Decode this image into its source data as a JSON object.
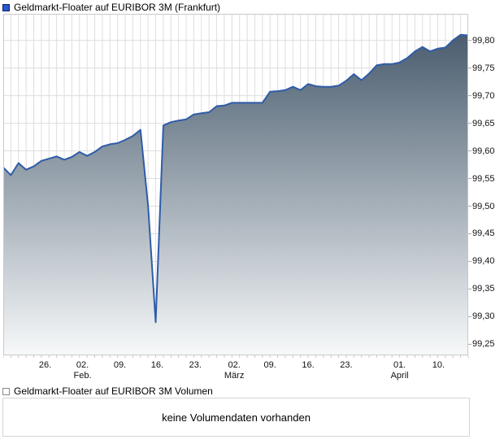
{
  "header": {
    "title": "Geldmarkt-Floater auf EURIBOR 3M (Frankfurt)",
    "legend_color": "#2957d0"
  },
  "volume": {
    "title": "Geldmarkt-Floater auf EURIBOR 3M Volumen",
    "message": "keine Volumendaten vorhanden"
  },
  "chart_data": {
    "type": "area",
    "title": "Geldmarkt-Floater auf EURIBOR 3M (Frankfurt)",
    "series_name": "Geldmarkt-Floater auf EURIBOR 3M",
    "ylim": [
      99.23,
      99.848
    ],
    "grid": true,
    "legend_position": "top-left",
    "y_axis_side": "right",
    "y_ticks": [
      {
        "v": 99.8,
        "label": "99,80"
      },
      {
        "v": 99.75,
        "label": "99,75"
      },
      {
        "v": 99.7,
        "label": "99,70"
      },
      {
        "v": 99.65,
        "label": "99,65"
      },
      {
        "v": 99.6,
        "label": "99,60"
      },
      {
        "v": 99.55,
        "label": "99,55"
      },
      {
        "v": 99.5,
        "label": "99,50"
      },
      {
        "v": 99.45,
        "label": "99,45"
      },
      {
        "v": 99.4,
        "label": "99,40"
      },
      {
        "v": 99.35,
        "label": "99,35"
      },
      {
        "v": 99.3,
        "label": "99,30"
      },
      {
        "v": 99.25,
        "label": "99,25"
      }
    ],
    "x_ticks": [
      {
        "d": 5.5,
        "l1": "26.",
        "l2": ""
      },
      {
        "d": 10.4,
        "l1": "02.",
        "l2": "Feb."
      },
      {
        "d": 15.3,
        "l1": "09.",
        "l2": ""
      },
      {
        "d": 20.2,
        "l1": "16.",
        "l2": ""
      },
      {
        "d": 25.2,
        "l1": "23.",
        "l2": ""
      },
      {
        "d": 30.3,
        "l1": "02.",
        "l2": "März"
      },
      {
        "d": 35.0,
        "l1": "09.",
        "l2": ""
      },
      {
        "d": 40.0,
        "l1": "16.",
        "l2": ""
      },
      {
        "d": 45.0,
        "l1": "23.",
        "l2": ""
      },
      {
        "d": 52.0,
        "l1": "01.",
        "l2": "April"
      },
      {
        "d": 57.1,
        "l1": "10.",
        "l2": ""
      }
    ],
    "values": [
      99.57,
      99.556,
      99.578,
      99.566,
      99.572,
      99.582,
      99.586,
      99.59,
      99.584,
      99.589,
      99.598,
      99.591,
      99.598,
      99.608,
      99.612,
      99.614,
      99.62,
      99.627,
      99.638,
      99.5,
      99.29,
      99.646,
      99.652,
      99.655,
      99.657,
      99.666,
      99.668,
      99.67,
      99.681,
      99.682,
      99.687,
      99.687,
      99.687,
      99.687,
      99.687,
      99.707,
      99.708,
      99.71,
      99.716,
      99.71,
      99.721,
      99.717,
      99.716,
      99.716,
      99.718,
      99.727,
      99.739,
      99.728,
      99.74,
      99.755,
      99.757,
      99.757,
      99.76,
      99.768,
      99.78,
      99.788,
      99.78,
      99.785,
      99.787,
      99.8,
      99.81,
      99.809
    ],
    "colors": {
      "line": "#2e5ca8",
      "fill_top": "#3f5366",
      "fill_bottom": "#f7f9fa",
      "grid": "#dedede",
      "border": "#c9c9c9",
      "tick": "#aaaaaa"
    }
  }
}
